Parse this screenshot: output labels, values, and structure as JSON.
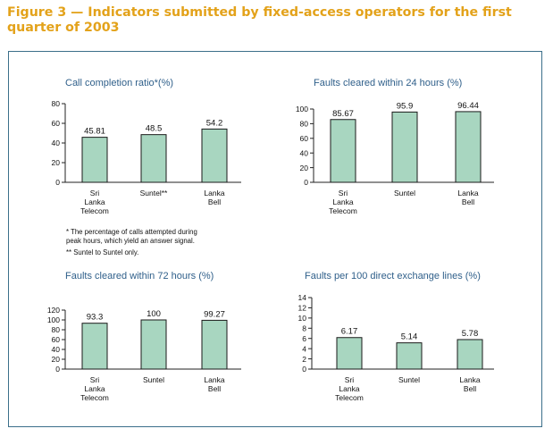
{
  "figure": {
    "title": "Figure 3 — Indicators submitted by fixed-access operators for the first quarter of 2003"
  },
  "notes": {
    "line1": "* The percentage of calls attempted during",
    "line2": "peak hours, which yield an answer signal.",
    "line3": "** Suntel to Suntel only."
  },
  "colors": {
    "title": "#e3a21a",
    "frame": "#3b6f8a",
    "chart_title": "#2f5f8a",
    "bar_fill": "#a8d6c0",
    "bar_stroke": "#1a1a1a"
  },
  "chart_data": [
    {
      "type": "bar",
      "title": "Call completion ratio*(%)",
      "categories": [
        [
          "Sri",
          "Lanka",
          "Telecom"
        ],
        [
          "Suntel**"
        ],
        [
          "Lanka",
          "Bell"
        ]
      ],
      "values": [
        45.81,
        48.5,
        54.2
      ],
      "value_labels": [
        "45.81",
        "48.5",
        "54.2"
      ],
      "ylim": [
        0,
        80
      ],
      "yticks": [
        0,
        20,
        40,
        60,
        80
      ],
      "grid": false,
      "xlabel": "",
      "ylabel": ""
    },
    {
      "type": "bar",
      "title": "Faults cleared within 24 hours (%)",
      "categories": [
        [
          "Sri",
          "Lanka",
          "Telecom"
        ],
        [
          "Suntel"
        ],
        [
          "Lanka",
          "Bell"
        ]
      ],
      "values": [
        85.67,
        95.9,
        96.44
      ],
      "value_labels": [
        "85.67",
        "95.9",
        "96.44"
      ],
      "ylim": [
        0,
        100
      ],
      "yticks": [
        0,
        20,
        40,
        60,
        80,
        100
      ],
      "grid": false,
      "xlabel": "",
      "ylabel": ""
    },
    {
      "type": "bar",
      "title": "Faults cleared within 72 hours (%)",
      "categories": [
        [
          "Sri",
          "Lanka",
          "Telecom"
        ],
        [
          "Suntel"
        ],
        [
          "Lanka",
          "Bell"
        ]
      ],
      "values": [
        93.3,
        100,
        99.27
      ],
      "value_labels": [
        "93.3",
        "100",
        "99.27"
      ],
      "ylim": [
        0,
        120
      ],
      "yticks": [
        0,
        20,
        40,
        60,
        80,
        100,
        120
      ],
      "grid": false,
      "xlabel": "",
      "ylabel": ""
    },
    {
      "type": "bar",
      "title": "Faults per 100 direct exchange lines  (%)",
      "categories": [
        [
          "Sri",
          "Lanka",
          "Telecom"
        ],
        [
          "Suntel"
        ],
        [
          "Lanka",
          "Bell"
        ]
      ],
      "values": [
        6.17,
        5.14,
        5.78
      ],
      "value_labels": [
        "6.17",
        "5.14",
        "5.78"
      ],
      "ylim": [
        0,
        14
      ],
      "yticks": [
        0,
        2,
        4,
        6,
        8,
        10,
        12,
        14
      ],
      "grid": false,
      "xlabel": "",
      "ylabel": ""
    }
  ]
}
